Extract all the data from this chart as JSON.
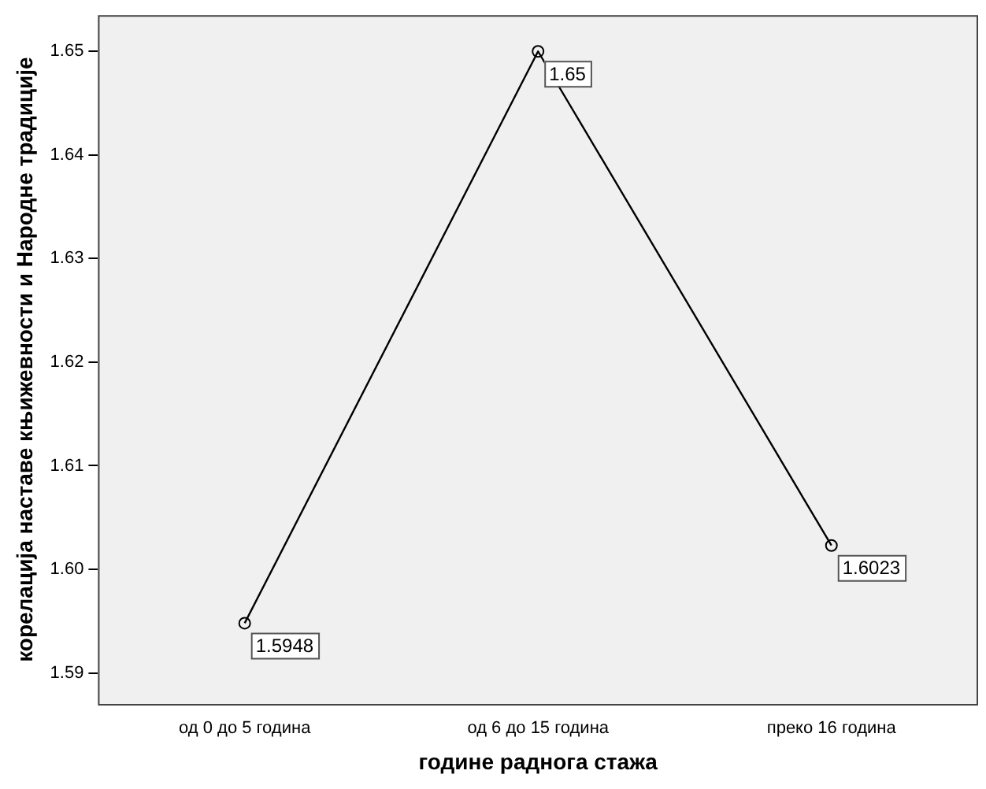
{
  "chart_data": {
    "type": "line",
    "xlabel": "године раднога стажа",
    "ylabel": "корелација наставе књижевности и Народне традиције",
    "categories": [
      "од 0 до 5 година",
      "од 6 до 15 година",
      "преко 16 година"
    ],
    "series": [
      {
        "color": "#000000",
        "values": [
          1.5948,
          1.65,
          1.6023
        ]
      }
    ],
    "ylim": [
      1.587,
      1.6535
    ],
    "yticks": [
      1.59,
      {
        "value": 1.6,
        "label": "1.60"
      },
      1.61,
      1.62,
      1.63,
      1.64,
      1.65
    ],
    "data_labels": true,
    "marker": "circle",
    "line_style": "solid",
    "grid": false,
    "legend": false
  }
}
